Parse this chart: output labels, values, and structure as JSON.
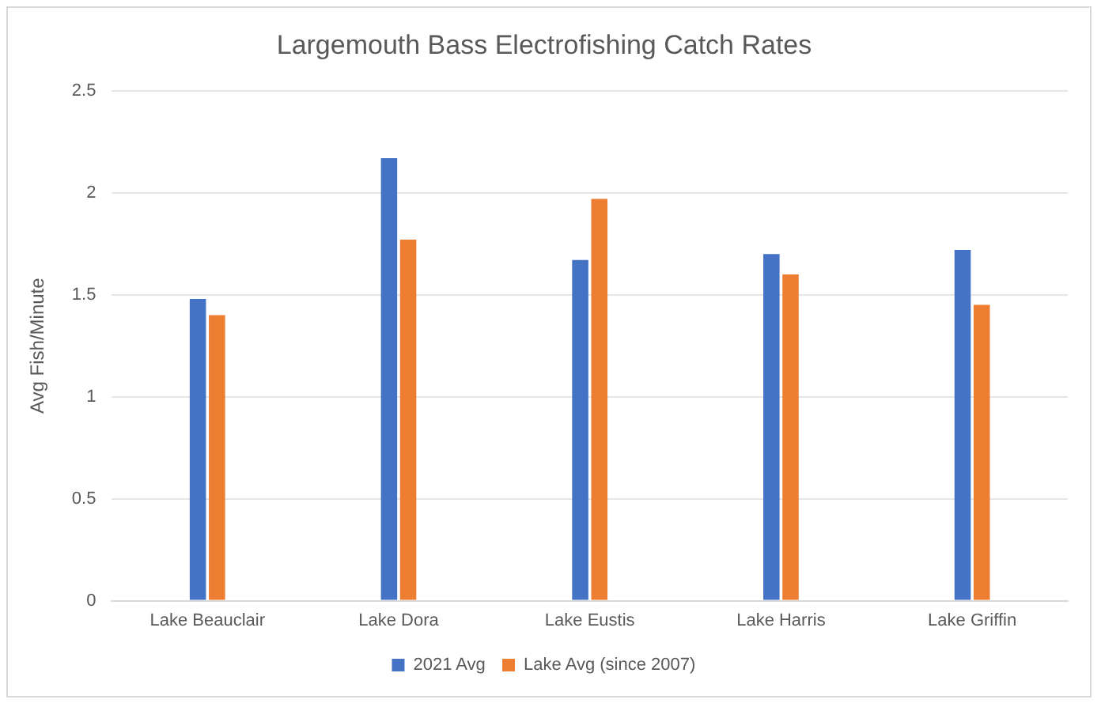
{
  "chart_data": {
    "type": "bar",
    "title": "Largemouth Bass Electrofishing Catch Rates",
    "ylabel": "Avg Fish/Minute",
    "categories": [
      "Lake Beauclair",
      "Lake Dora",
      "Lake Eustis",
      "Lake Harris",
      "Lake Griffin"
    ],
    "series": [
      {
        "name": "2021 Avg",
        "color": "#4472c4",
        "values": [
          1.48,
          2.17,
          1.67,
          1.7,
          1.72
        ]
      },
      {
        "name": "Lake Avg (since 2007)",
        "color": "#ed7d31",
        "values": [
          1.4,
          1.77,
          1.97,
          1.6,
          1.45
        ]
      }
    ],
    "ylim": [
      0,
      2.5
    ],
    "yticks": [
      0,
      0.5,
      1,
      1.5,
      2,
      2.5
    ],
    "grid": "y",
    "legend": "bottom"
  }
}
